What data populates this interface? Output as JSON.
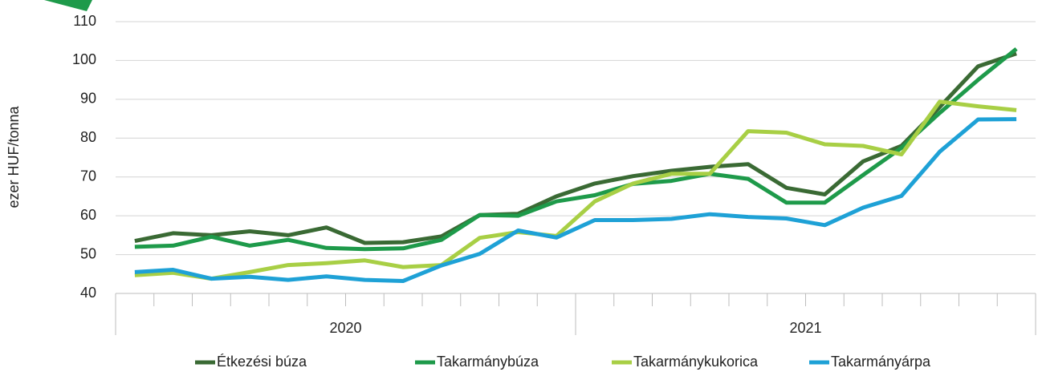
{
  "chart_data": {
    "type": "line",
    "y_label": "ezer HUF/tonna",
    "categories": [
      null,
      null,
      null,
      null,
      null,
      null,
      null,
      null,
      null,
      null,
      null,
      null,
      null,
      null,
      null,
      null,
      null,
      null,
      null,
      null,
      null,
      null,
      null,
      null
    ],
    "x_groups": [
      "2020",
      "2021"
    ],
    "ylim": [
      40,
      110
    ],
    "yticks": [
      40,
      50,
      60,
      70,
      80,
      90,
      100,
      110
    ],
    "grid": true,
    "legend": "bottom",
    "series": [
      {
        "name": "Étkezési búza",
        "color": "#3a6a34",
        "values": [
          53.5,
          55.5,
          55,
          56,
          55,
          57,
          53,
          53.2,
          54.7,
          60.2,
          60.5,
          65,
          68.3,
          70.2,
          71.6,
          72.6,
          73.3,
          67.2,
          65.5,
          74,
          78,
          88,
          98.5,
          101.8
        ]
      },
      {
        "name": "Takarmánybúza",
        "color": "#1e9a4a",
        "values": [
          52,
          52.3,
          54.6,
          52.3,
          53.8,
          51.7,
          51.4,
          51.6,
          53.8,
          60.2,
          60,
          63.7,
          65.3,
          68.2,
          69,
          70.8,
          69.5,
          63.4,
          63.4,
          70.5,
          77.5,
          86.5,
          95,
          103
        ]
      },
      {
        "name": "Takarmánykukorica",
        "color": "#a8cf45",
        "values": [
          44.7,
          45.3,
          43.8,
          45.5,
          47.3,
          47.8,
          48.5,
          46.8,
          47.3,
          54.3,
          55.8,
          54.8,
          63.7,
          68.3,
          70.8,
          70.8,
          81.8,
          81.4,
          78.4,
          78,
          75.8,
          89.4,
          88.2,
          87.2
        ]
      },
      {
        "name": "Takarmányárpa",
        "color": "#1ea1d6",
        "values": [
          45.5,
          46.1,
          43.8,
          44.3,
          43.5,
          44.4,
          43.5,
          43.2,
          47.2,
          50.2,
          56.2,
          54.4,
          58.9,
          58.9,
          59.2,
          60.4,
          59.7,
          59.3,
          57.6,
          62.1,
          65.1,
          76.5,
          84.8,
          84.9
        ]
      }
    ]
  }
}
